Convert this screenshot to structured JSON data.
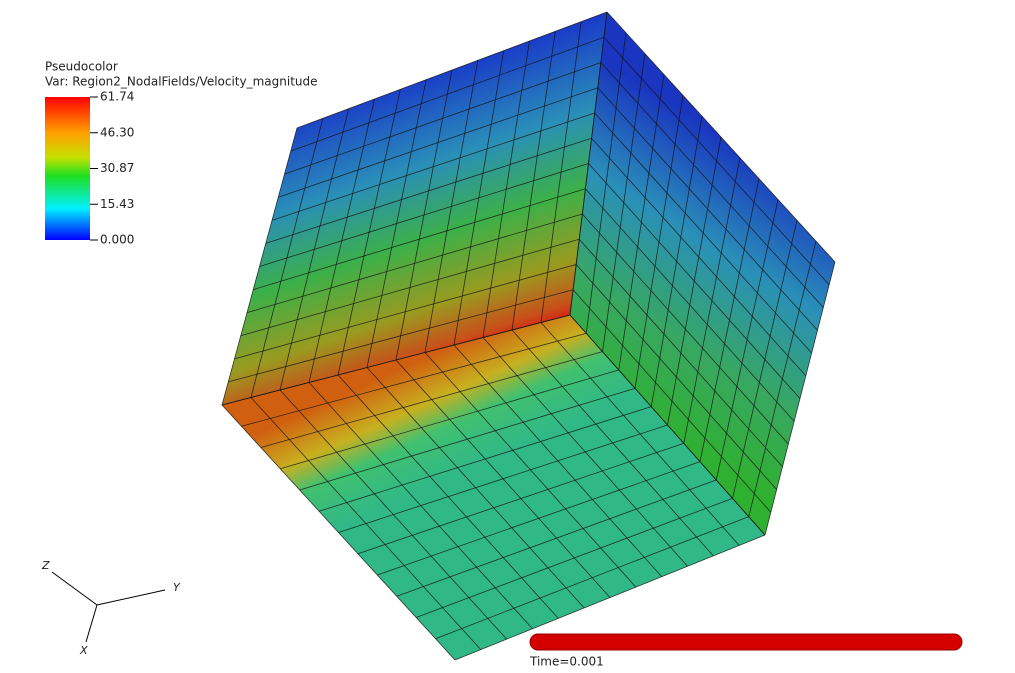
{
  "legend": {
    "title": "Pseudocolor",
    "variable": "Var: Region2_NodalFields/Velocity_magnitude",
    "ticks": [
      "61.74",
      "46.30",
      "30.87",
      "15.43",
      "0.000"
    ]
  },
  "triad": {
    "z": "Z",
    "y": "Y",
    "x": "X"
  },
  "time": "Time=0.001"
}
